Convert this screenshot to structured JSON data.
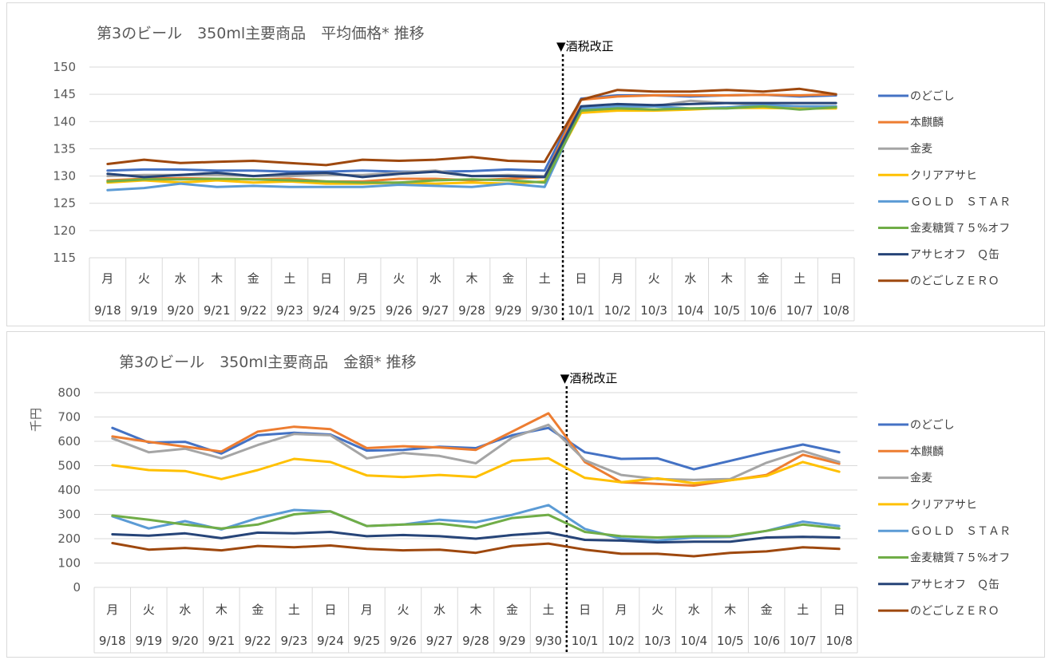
{
  "colors": {
    "series": [
      "#4472c4",
      "#ed7d31",
      "#a5a5a5",
      "#ffc000",
      "#5b9bd5",
      "#70ad47",
      "#264478",
      "#9e480e"
    ],
    "grid": "#d9d9d9",
    "text": "#595959"
  },
  "chart_data": [
    {
      "type": "line",
      "title": "第3のビール　350ml主要商品　平均価格*  推移",
      "xlabel": "",
      "ylabel": "",
      "ylim": [
        115,
        150
      ],
      "yticks": [
        115,
        120,
        125,
        130,
        135,
        140,
        145,
        150
      ],
      "days": [
        "月",
        "火",
        "水",
        "木",
        "金",
        "土",
        "日",
        "月",
        "火",
        "水",
        "木",
        "金",
        "土",
        "日",
        "月",
        "火",
        "水",
        "木",
        "金",
        "土",
        "日"
      ],
      "categories": [
        "9/18",
        "9/19",
        "9/20",
        "9/21",
        "9/22",
        "9/23",
        "9/24",
        "9/25",
        "9/26",
        "9/27",
        "9/28",
        "9/29",
        "9/30",
        "10/1",
        "10/2",
        "10/3",
        "10/4",
        "10/5",
        "10/6",
        "10/7",
        "10/8"
      ],
      "annotation": "▼酒税改正",
      "grid": true,
      "legend_position": "right",
      "series": [
        {
          "name": "のどごし",
          "values": [
            131.0,
            131.2,
            131.2,
            131.0,
            131.0,
            130.8,
            130.8,
            131.0,
            130.8,
            130.8,
            130.9,
            131.2,
            131.0,
            144.2,
            144.8,
            144.8,
            144.6,
            144.8,
            144.9,
            144.6,
            144.8
          ]
        },
        {
          "name": "本麒麟",
          "values": [
            129.2,
            129.5,
            129.6,
            129.5,
            129.4,
            129.5,
            129.0,
            129.0,
            129.5,
            129.5,
            129.2,
            129.5,
            129.8,
            144.0,
            144.6,
            144.8,
            144.8,
            144.8,
            144.9,
            144.8,
            145.0
          ]
        },
        {
          "name": "金麦",
          "values": [
            130.0,
            130.2,
            130.2,
            130.2,
            130.0,
            130.0,
            130.2,
            130.2,
            130.6,
            131.0,
            130.0,
            130.2,
            130.0,
            142.2,
            142.5,
            142.8,
            143.8,
            143.4,
            143.0,
            142.8,
            142.8
          ]
        },
        {
          "name": "クリアアサヒ",
          "values": [
            128.8,
            129.2,
            128.8,
            129.2,
            128.8,
            129.0,
            128.6,
            128.6,
            128.8,
            128.6,
            128.8,
            128.6,
            129.0,
            141.6,
            142.0,
            142.0,
            142.2,
            142.5,
            142.5,
            142.4,
            142.4
          ]
        },
        {
          "name": "ＧＯＬＤ　ＳＴＡＲ",
          "values": [
            127.4,
            127.8,
            128.6,
            128.0,
            128.2,
            128.0,
            128.0,
            128.0,
            128.4,
            128.2,
            128.0,
            128.6,
            128.0,
            142.4,
            142.8,
            142.8,
            142.4,
            142.6,
            143.0,
            142.8,
            142.8
          ]
        },
        {
          "name": "金麦糖質７５%オフ",
          "values": [
            129.0,
            129.4,
            129.4,
            129.5,
            129.4,
            129.2,
            129.0,
            128.8,
            128.8,
            129.2,
            129.4,
            129.2,
            128.8,
            142.0,
            142.4,
            142.2,
            142.4,
            142.4,
            142.8,
            142.2,
            142.6
          ]
        },
        {
          "name": "アサヒオフ　Ｑ缶",
          "values": [
            130.4,
            129.8,
            130.2,
            130.6,
            130.0,
            130.4,
            130.6,
            129.8,
            130.4,
            130.8,
            130.0,
            130.0,
            129.8,
            142.8,
            143.2,
            143.0,
            143.2,
            143.4,
            143.4,
            143.4,
            143.4
          ]
        },
        {
          "name": "のどごしＺＥＲＯ",
          "values": [
            132.2,
            133.0,
            132.4,
            132.6,
            132.8,
            132.4,
            132.0,
            133.0,
            132.8,
            133.0,
            133.5,
            132.8,
            132.6,
            144.0,
            145.8,
            145.5,
            145.5,
            145.8,
            145.5,
            146.0,
            145.0
          ]
        }
      ]
    },
    {
      "type": "line",
      "title": "第3のビール　350ml主要商品　金額*  推移",
      "xlabel": "",
      "ylabel": "千円",
      "ylim": [
        0,
        800
      ],
      "yticks": [
        0,
        100,
        200,
        300,
        400,
        500,
        600,
        700,
        800
      ],
      "days": [
        "月",
        "火",
        "水",
        "木",
        "金",
        "土",
        "日",
        "月",
        "火",
        "水",
        "木",
        "金",
        "土",
        "日",
        "月",
        "火",
        "水",
        "木",
        "金",
        "土",
        "日"
      ],
      "categories": [
        "9/18",
        "9/19",
        "9/20",
        "9/21",
        "9/22",
        "9/23",
        "9/24",
        "9/25",
        "9/26",
        "9/27",
        "9/28",
        "9/29",
        "9/30",
        "10/1",
        "10/2",
        "10/3",
        "10/4",
        "10/5",
        "10/6",
        "10/7",
        "10/8"
      ],
      "annotation": "▼酒税改正",
      "grid": true,
      "legend_position": "right",
      "series": [
        {
          "name": "のどごし",
          "values": [
            655,
            595,
            598,
            550,
            625,
            635,
            628,
            562,
            565,
            578,
            572,
            625,
            655,
            555,
            528,
            530,
            485,
            520,
            555,
            587,
            555
          ]
        },
        {
          "name": "本麒麟",
          "values": [
            620,
            598,
            578,
            558,
            640,
            660,
            650,
            572,
            580,
            575,
            565,
            640,
            715,
            515,
            432,
            425,
            418,
            440,
            462,
            545,
            508
          ]
        },
        {
          "name": "金麦",
          "values": [
            612,
            555,
            570,
            530,
            585,
            630,
            625,
            530,
            552,
            540,
            510,
            615,
            668,
            522,
            462,
            445,
            442,
            445,
            512,
            560,
            515
          ]
        },
        {
          "name": "クリアアサヒ",
          "values": [
            502,
            482,
            478,
            445,
            482,
            528,
            515,
            460,
            453,
            462,
            453,
            520,
            530,
            450,
            432,
            448,
            428,
            440,
            458,
            515,
            475
          ]
        },
        {
          "name": "ＧＯＬＤ　ＳＴＡＲ",
          "values": [
            292,
            242,
            272,
            238,
            285,
            318,
            312,
            252,
            258,
            278,
            268,
            298,
            338,
            240,
            200,
            192,
            205,
            208,
            232,
            270,
            252
          ]
        },
        {
          "name": "金麦糖質７５%オフ",
          "values": [
            295,
            278,
            258,
            242,
            258,
            300,
            312,
            252,
            258,
            262,
            245,
            285,
            298,
            228,
            210,
            205,
            210,
            210,
            232,
            258,
            242
          ]
        },
        {
          "name": "アサヒオフ　Ｑ缶",
          "values": [
            218,
            212,
            222,
            202,
            225,
            222,
            228,
            210,
            215,
            210,
            200,
            215,
            225,
            195,
            192,
            185,
            188,
            188,
            205,
            208,
            205
          ]
        },
        {
          "name": "のどごしＺＥＲＯ",
          "values": [
            182,
            155,
            162,
            152,
            170,
            165,
            172,
            158,
            152,
            155,
            142,
            170,
            180,
            155,
            138,
            138,
            128,
            142,
            148,
            165,
            158
          ]
        }
      ]
    }
  ]
}
